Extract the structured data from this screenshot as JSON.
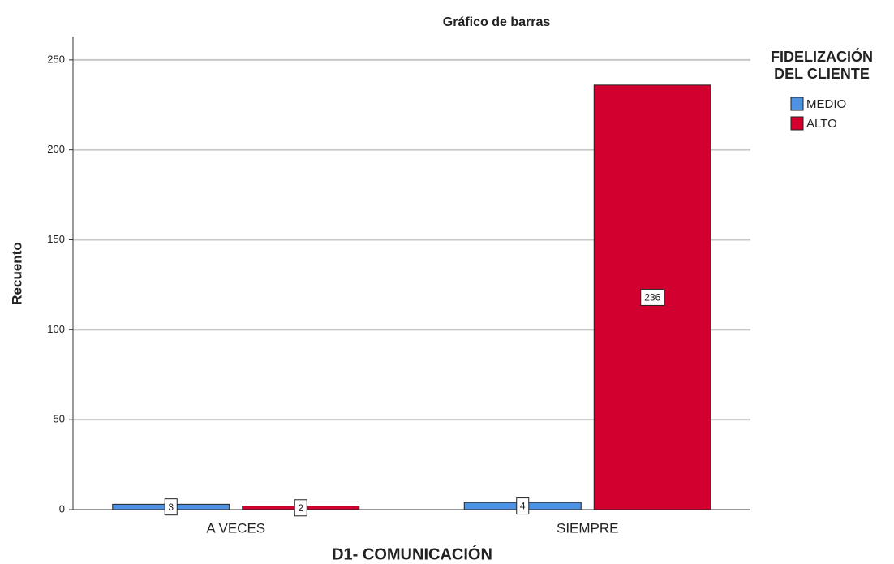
{
  "chart_data": {
    "type": "bar",
    "title": "Gráfico de barras",
    "x_label": "D1- COMUNICACIÓN",
    "y_label": "Recuento",
    "legend_title": [
      "FIDELIZACIÓN",
      "DEL CLIENTE"
    ],
    "categories": [
      "A VECES",
      "SIEMPRE"
    ],
    "series": [
      {
        "name": "MEDIO",
        "color": "#4d92e3",
        "values": [
          3,
          4
        ]
      },
      {
        "name": "ALTO",
        "color": "#d1002f",
        "values": [
          2,
          236
        ]
      }
    ],
    "ylim": [
      0,
      263
    ],
    "yticks": [
      0,
      50,
      100,
      150,
      200,
      250
    ],
    "grid": true,
    "legend": "right"
  }
}
